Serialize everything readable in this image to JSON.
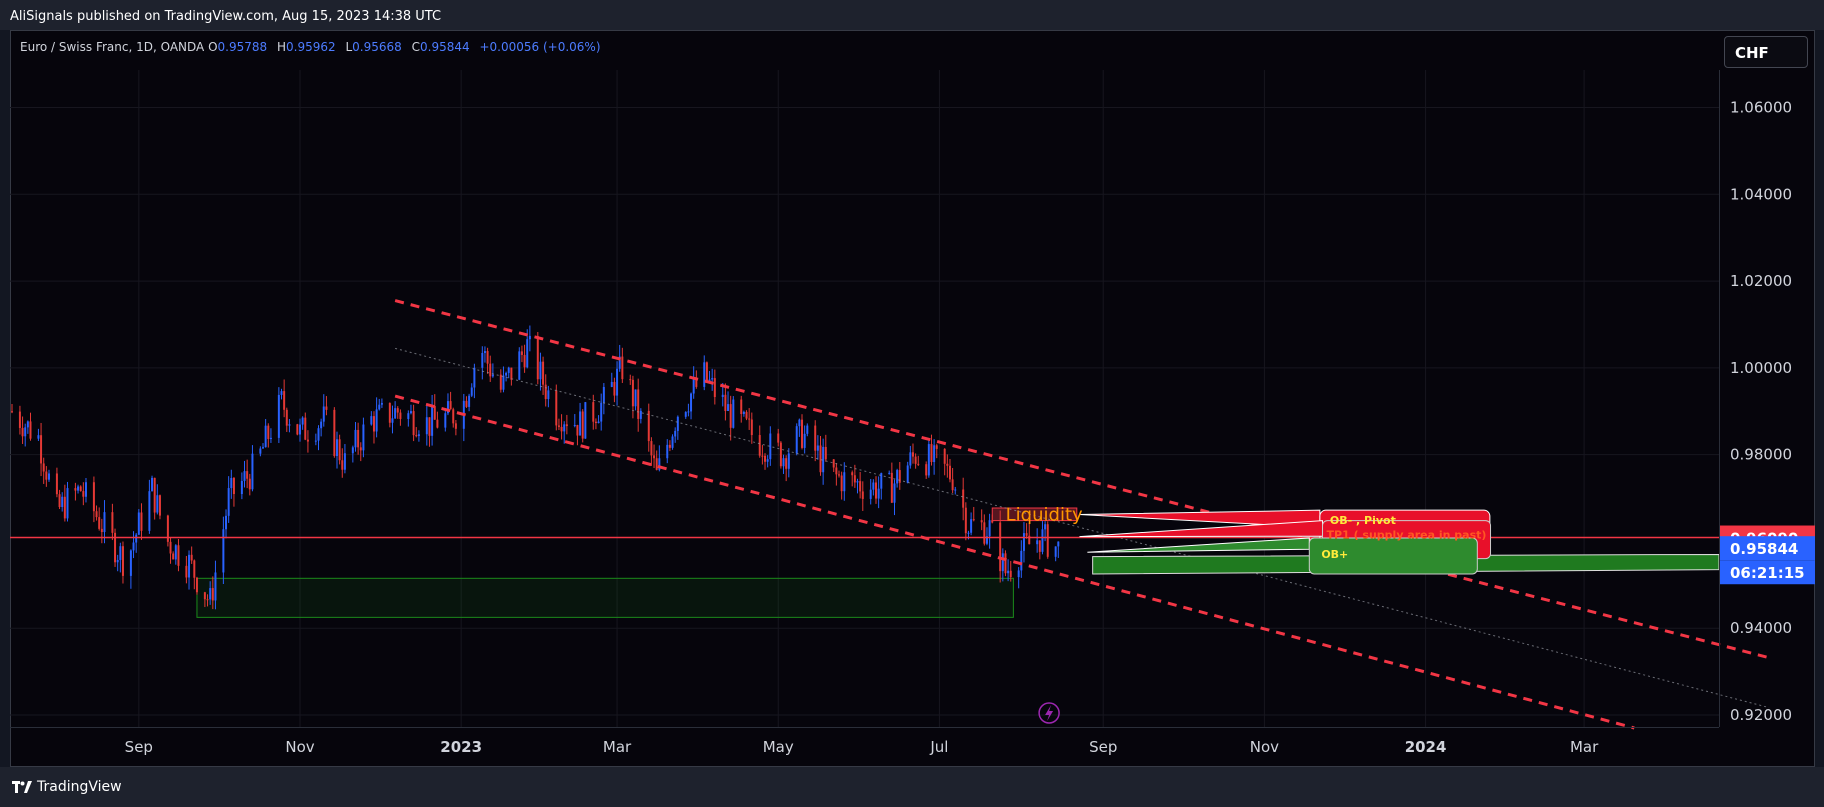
{
  "header": {
    "published": "AliSignals published on TradingView.com, Aug 15, 2023 14:38 UTC"
  },
  "symbol": {
    "title": "Euro / Swiss Franc, 1D, OANDA",
    "o_label": "O",
    "o_value": "0.95788",
    "h_label": "H",
    "h_value": "0.95962",
    "l_label": "L",
    "l_value": "0.95668",
    "c_label": "C",
    "c_value": "0.95844",
    "change": "+0.00056 (+0.06%)"
  },
  "toolbar": {
    "currency": "CHF"
  },
  "footer": {
    "brand": "TradingView"
  },
  "colors": {
    "up": "#2962ff",
    "down": "#e53935",
    "resistance": "#f23645",
    "demand": "#1b8a1b",
    "label_orange": "#ff9800"
  },
  "chart_data": {
    "type": "candlestick",
    "title": "Euro / Swiss Franc, 1D, OANDA",
    "x_ticks": [
      {
        "label": "Sep",
        "date": "2022-09-01"
      },
      {
        "label": "Nov",
        "date": "2022-11-01"
      },
      {
        "label": "2023",
        "date": "2023-01-01",
        "bold": true
      },
      {
        "label": "Mar",
        "date": "2023-03-01"
      },
      {
        "label": "May",
        "date": "2023-05-01"
      },
      {
        "label": "Jul",
        "date": "2023-07-01"
      },
      {
        "label": "Sep",
        "date": "2023-09-01"
      },
      {
        "label": "Nov",
        "date": "2023-11-01"
      },
      {
        "label": "2024",
        "date": "2024-01-01",
        "bold": true
      },
      {
        "label": "Mar",
        "date": "2024-03-01"
      }
    ],
    "y_ticks": [
      "1.06000",
      "1.04000",
      "1.02000",
      "1.00000",
      "0.98000",
      "0.94000",
      "0.92000"
    ],
    "y_tick_values": [
      1.06,
      1.04,
      1.02,
      1.0,
      0.98,
      0.94,
      0.92
    ],
    "ylim": [
      0.917,
      1.0645
    ],
    "grid": true,
    "price_markers": [
      {
        "label": "0.96090",
        "value": 0.9609,
        "color": "#f23645"
      },
      {
        "label": "0.95844",
        "value": 0.95844,
        "color": "#2962ff"
      },
      {
        "label": "06:21:15",
        "value": 0.9529,
        "color": "#2962ff"
      }
    ],
    "horizontal_line": {
      "value": 0.9609,
      "color": "#f23645"
    },
    "path": [
      [
        "2022-07-15",
        0.99
      ],
      [
        "2022-07-25",
        0.984
      ],
      [
        "2022-08-01",
        0.967
      ],
      [
        "2022-08-10",
        0.972
      ],
      [
        "2022-08-20",
        0.962
      ],
      [
        "2022-08-27",
        0.955
      ],
      [
        "2022-09-06",
        0.972
      ],
      [
        "2022-09-12",
        0.96
      ],
      [
        "2022-09-20",
        0.955
      ],
      [
        "2022-09-28",
        0.946
      ],
      [
        "2022-10-05",
        0.97
      ],
      [
        "2022-10-15",
        0.977
      ],
      [
        "2022-10-25",
        0.992
      ],
      [
        "2022-11-01",
        0.985
      ],
      [
        "2022-11-10",
        0.988
      ],
      [
        "2022-11-18",
        0.978
      ],
      [
        "2022-11-28",
        0.988
      ],
      [
        "2022-12-08",
        0.99
      ],
      [
        "2022-12-20",
        0.987
      ],
      [
        "2023-01-01",
        0.99
      ],
      [
        "2023-01-08",
        1.005
      ],
      [
        "2023-01-16",
        0.995
      ],
      [
        "2023-01-26",
        1.005
      ],
      [
        "2023-02-06",
        0.99
      ],
      [
        "2023-02-15",
        0.987
      ],
      [
        "2023-02-24",
        0.992
      ],
      [
        "2023-03-03",
        1.0
      ],
      [
        "2023-03-10",
        0.988
      ],
      [
        "2023-03-16",
        0.975
      ],
      [
        "2023-03-24",
        0.99
      ],
      [
        "2023-04-03",
        0.998
      ],
      [
        "2023-04-12",
        0.99
      ],
      [
        "2023-04-24",
        0.983
      ],
      [
        "2023-05-03",
        0.98
      ],
      [
        "2023-05-10",
        0.985
      ],
      [
        "2023-05-22",
        0.975
      ],
      [
        "2023-06-02",
        0.973
      ],
      [
        "2023-06-12",
        0.972
      ],
      [
        "2023-06-22",
        0.98
      ],
      [
        "2023-06-30",
        0.978
      ],
      [
        "2023-07-06",
        0.975
      ],
      [
        "2023-07-12",
        0.964
      ],
      [
        "2023-07-20",
        0.963
      ],
      [
        "2023-07-26",
        0.953
      ],
      [
        "2023-08-01",
        0.958
      ],
      [
        "2023-08-08",
        0.961
      ],
      [
        "2023-08-15",
        0.9584
      ]
    ],
    "channel_lines": [
      {
        "from": [
          "2022-12-07",
          1.0155
        ],
        "to": [
          "2024-05-10",
          0.9332
        ],
        "style": "dashed",
        "color": "#f23645"
      },
      {
        "from": [
          "2022-12-07",
          0.9935
        ],
        "to": [
          "2024-03-20",
          0.917
        ],
        "style": "dashed",
        "color": "#f23645"
      },
      {
        "from": [
          "2022-12-07",
          1.0045
        ],
        "to": [
          "2024-05-10",
          0.9217
        ],
        "style": "dotted",
        "color": "#9598a1"
      }
    ],
    "zones": [
      {
        "type": "demand",
        "from": [
          "2022-09-23",
          0.9515
        ],
        "to": [
          "2023-07-29",
          0.9425
        ]
      },
      {
        "type": "supply",
        "from": [
          "2023-07-21",
          0.9677
        ],
        "to": [
          "2023-08-22",
          0.9648
        ]
      }
    ],
    "annotations": [
      {
        "text": "Liquidity",
        "at": [
          "2023-08-14",
          0.9648
        ],
        "color": "#ff9800"
      },
      {
        "text": "OB- , Pivot",
        "color": "#ffeb3b",
        "bg": "#f23645"
      },
      {
        "text": "TP1 ( supply area in past)",
        "color": "#ff5722",
        "bg": "#f23645"
      },
      {
        "text": "OB+",
        "color": "#ffeb3b",
        "bg": "#2e7d32"
      }
    ]
  }
}
